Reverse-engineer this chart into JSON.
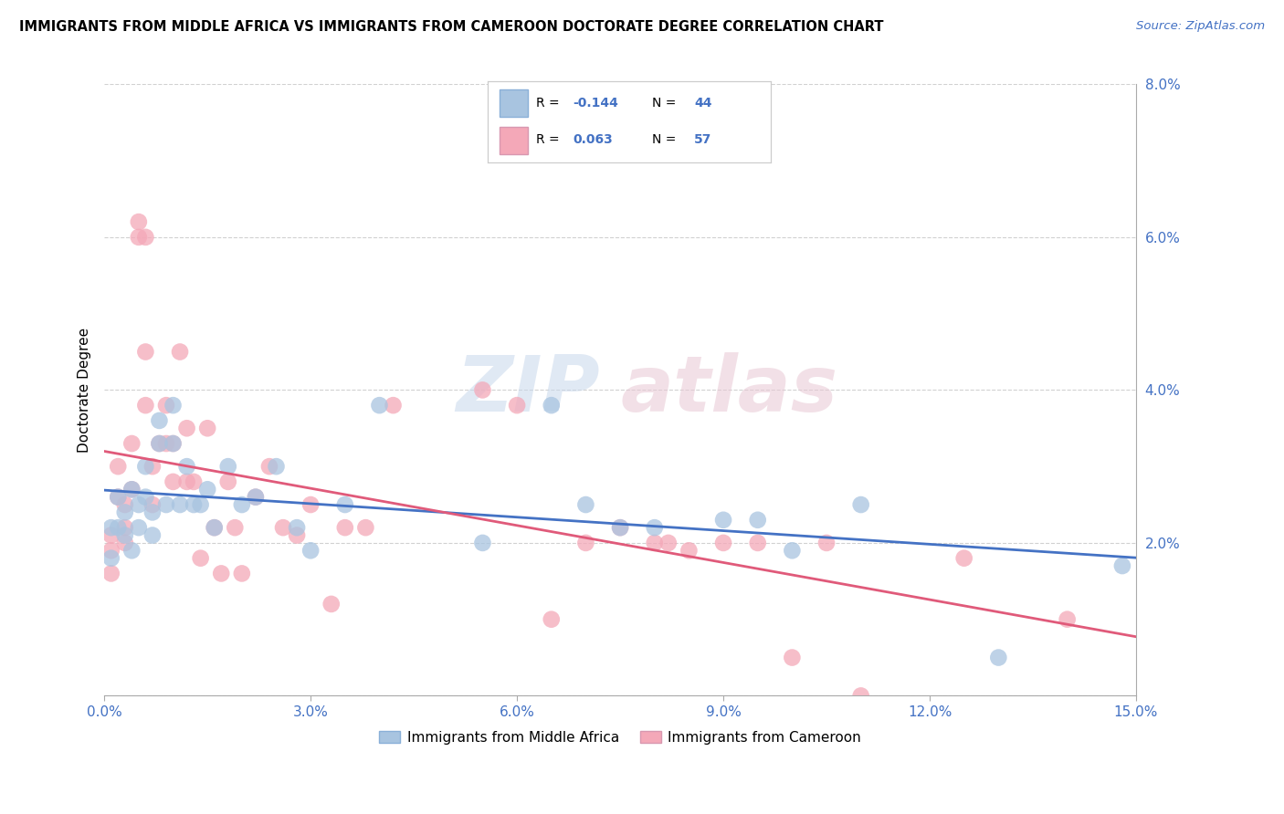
{
  "title": "IMMIGRANTS FROM MIDDLE AFRICA VS IMMIGRANTS FROM CAMEROON DOCTORATE DEGREE CORRELATION CHART",
  "source": "Source: ZipAtlas.com",
  "ylabel": "Doctorate Degree",
  "xlim": [
    0,
    0.15
  ],
  "ylim": [
    0,
    0.08
  ],
  "xticks": [
    0.0,
    0.03,
    0.06,
    0.09,
    0.12,
    0.15
  ],
  "yticks": [
    0.0,
    0.02,
    0.04,
    0.06,
    0.08
  ],
  "xtick_labels": [
    "0.0%",
    "3.0%",
    "6.0%",
    "9.0%",
    "12.0%",
    "15.0%"
  ],
  "ytick_labels": [
    "",
    "2.0%",
    "4.0%",
    "6.0%",
    "8.0%"
  ],
  "series1_label": "Immigrants from Middle Africa",
  "series2_label": "Immigrants from Cameroon",
  "series1_R": "-0.144",
  "series1_N": "44",
  "series2_R": "0.063",
  "series2_N": "57",
  "series1_color": "#a8c4e0",
  "series2_color": "#f4a8b8",
  "series1_line_color": "#4472c4",
  "series2_line_color": "#e05a7a",
  "background_color": "#ffffff",
  "watermark_zip": "ZIP",
  "watermark_atlas": "atlas",
  "series1_x": [
    0.001,
    0.001,
    0.002,
    0.002,
    0.003,
    0.003,
    0.004,
    0.004,
    0.005,
    0.005,
    0.006,
    0.006,
    0.007,
    0.007,
    0.008,
    0.008,
    0.009,
    0.01,
    0.01,
    0.011,
    0.012,
    0.013,
    0.014,
    0.015,
    0.016,
    0.018,
    0.02,
    0.022,
    0.025,
    0.028,
    0.03,
    0.035,
    0.04,
    0.055,
    0.065,
    0.07,
    0.075,
    0.08,
    0.09,
    0.095,
    0.1,
    0.11,
    0.13,
    0.148
  ],
  "series1_y": [
    0.022,
    0.018,
    0.026,
    0.022,
    0.024,
    0.021,
    0.027,
    0.019,
    0.025,
    0.022,
    0.03,
    0.026,
    0.024,
    0.021,
    0.036,
    0.033,
    0.025,
    0.038,
    0.033,
    0.025,
    0.03,
    0.025,
    0.025,
    0.027,
    0.022,
    0.03,
    0.025,
    0.026,
    0.03,
    0.022,
    0.019,
    0.025,
    0.038,
    0.02,
    0.038,
    0.025,
    0.022,
    0.022,
    0.023,
    0.023,
    0.019,
    0.025,
    0.005,
    0.017
  ],
  "series2_x": [
    0.001,
    0.001,
    0.001,
    0.002,
    0.002,
    0.003,
    0.003,
    0.003,
    0.004,
    0.004,
    0.005,
    0.005,
    0.006,
    0.006,
    0.006,
    0.007,
    0.007,
    0.008,
    0.009,
    0.009,
    0.01,
    0.01,
    0.011,
    0.012,
    0.012,
    0.013,
    0.014,
    0.015,
    0.016,
    0.017,
    0.018,
    0.019,
    0.02,
    0.022,
    0.024,
    0.026,
    0.028,
    0.03,
    0.033,
    0.035,
    0.038,
    0.042,
    0.055,
    0.06,
    0.065,
    0.07,
    0.075,
    0.08,
    0.082,
    0.085,
    0.09,
    0.095,
    0.1,
    0.105,
    0.11,
    0.125,
    0.14
  ],
  "series2_y": [
    0.021,
    0.019,
    0.016,
    0.03,
    0.026,
    0.025,
    0.022,
    0.02,
    0.033,
    0.027,
    0.062,
    0.06,
    0.06,
    0.045,
    0.038,
    0.03,
    0.025,
    0.033,
    0.038,
    0.033,
    0.033,
    0.028,
    0.045,
    0.035,
    0.028,
    0.028,
    0.018,
    0.035,
    0.022,
    0.016,
    0.028,
    0.022,
    0.016,
    0.026,
    0.03,
    0.022,
    0.021,
    0.025,
    0.012,
    0.022,
    0.022,
    0.038,
    0.04,
    0.038,
    0.01,
    0.02,
    0.022,
    0.02,
    0.02,
    0.019,
    0.02,
    0.02,
    0.005,
    0.02,
    0.0,
    0.018,
    0.01
  ]
}
